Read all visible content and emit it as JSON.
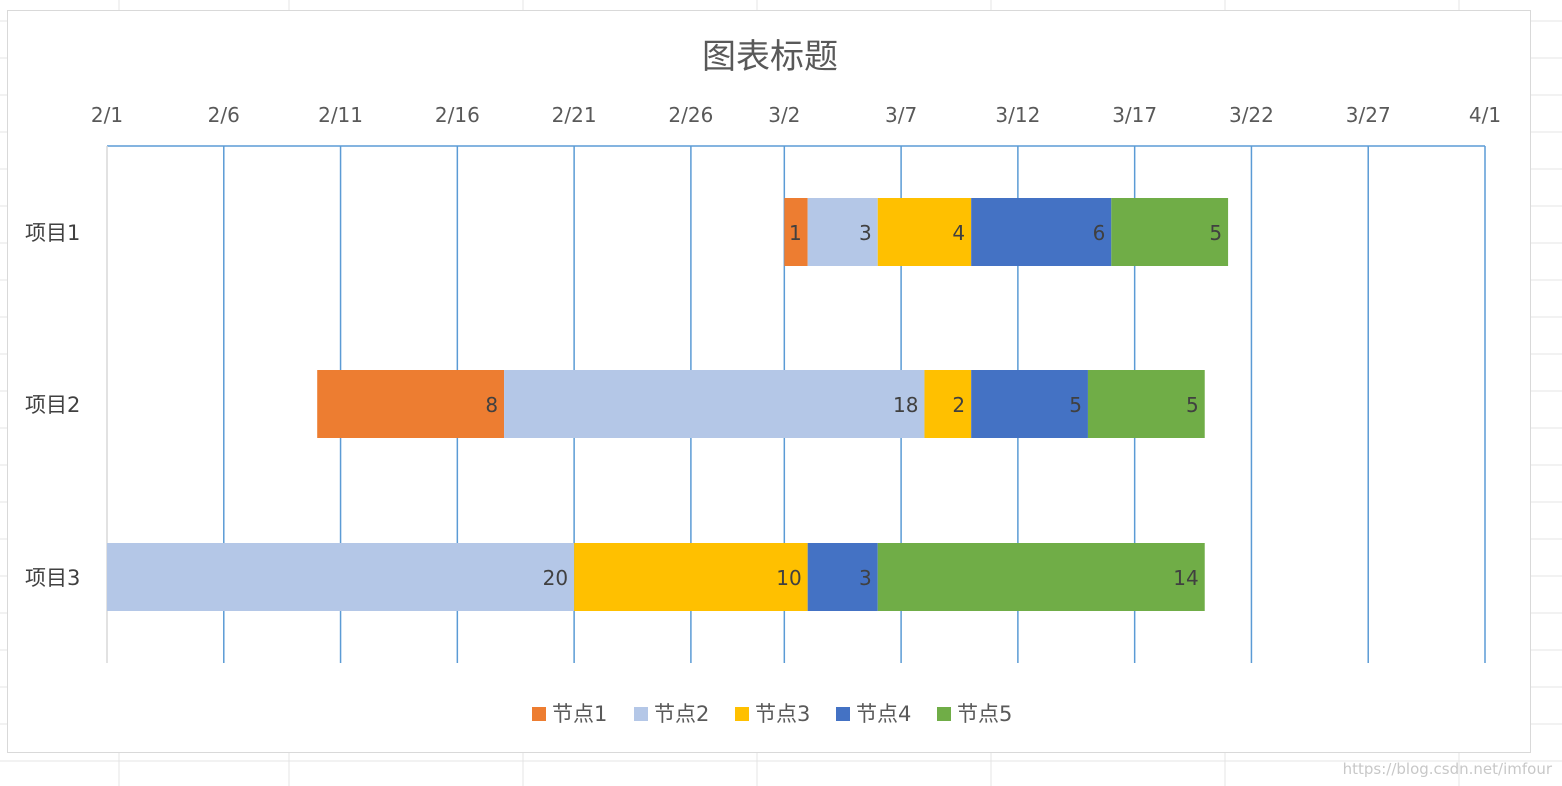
{
  "chart_data": {
    "type": "bar",
    "orientation": "horizontal-stacked",
    "title": "图表标题",
    "x_axis": {
      "position": "top",
      "range": [
        "2/1",
        "4/1"
      ],
      "tick_labels": [
        "2/1",
        "2/6",
        "2/11",
        "2/16",
        "2/21",
        "2/26",
        "3/2",
        "3/7",
        "3/12",
        "3/17",
        "3/22",
        "3/27",
        "4/1"
      ],
      "tick_days": [
        0,
        5,
        10,
        15,
        20,
        25,
        29,
        34,
        39,
        44,
        49,
        54,
        59
      ],
      "major_gridlines": true
    },
    "categories": [
      "项目1",
      "项目2",
      "项目3"
    ],
    "start_days": [
      29,
      9,
      0
    ],
    "series": [
      {
        "name": "节点1",
        "color": "#ED7D31",
        "values": [
          1,
          8,
          null
        ]
      },
      {
        "name": "节点2",
        "color": "#B4C7E7",
        "values": [
          3,
          18,
          20
        ]
      },
      {
        "name": "节点3",
        "color": "#FFC000",
        "values": [
          4,
          2,
          10
        ]
      },
      {
        "name": "节点4",
        "color": "#4472C4",
        "values": [
          6,
          5,
          3
        ]
      },
      {
        "name": "节点5",
        "color": "#70AD47",
        "values": [
          5,
          5,
          14
        ]
      }
    ],
    "legend_position": "bottom"
  },
  "watermark": "https://blog.csdn.net/imfour",
  "colors": {
    "gridline": "#5B9BD5",
    "axis": "#d9d9d9",
    "sheet_grid": "#e4e4e4"
  }
}
